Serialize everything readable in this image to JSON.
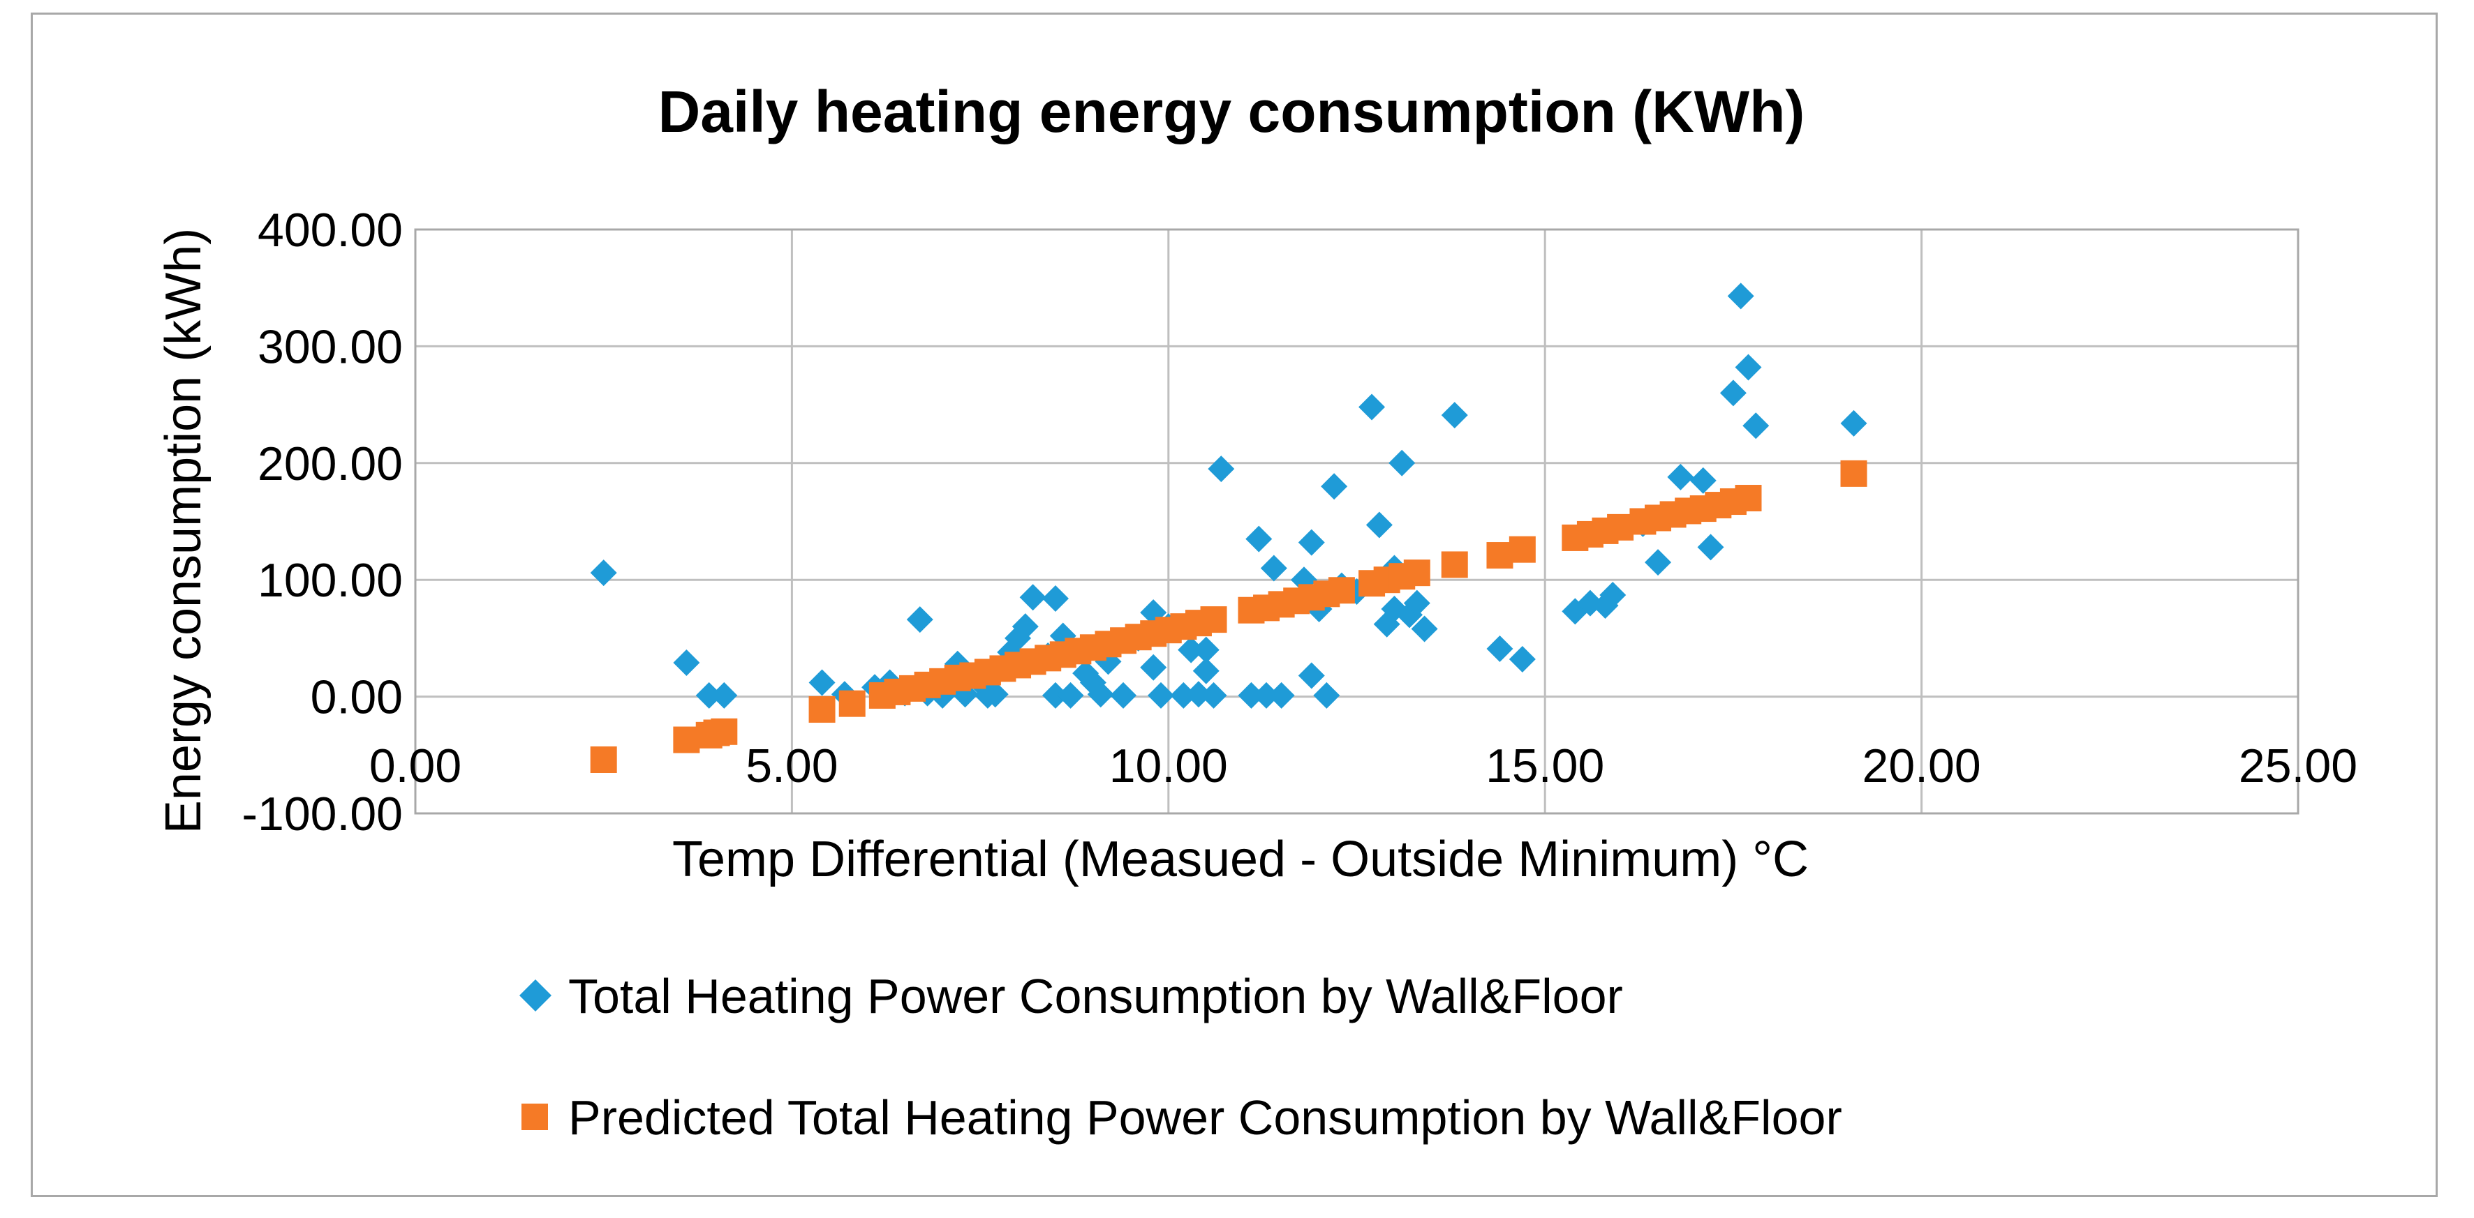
{
  "chart_data": {
    "type": "scatter",
    "title": "Daily heating energy consumption  (KWh)",
    "xlabel": "Temp Differential (Measued - Outside Minimum) °C",
    "ylabel": "Energy consumption (kWh)",
    "xlim": [
      0,
      25
    ],
    "ylim": [
      -100,
      400
    ],
    "x_ticks": [
      "0.00",
      "5.00",
      "10.00",
      "15.00",
      "20.00",
      "25.00"
    ],
    "y_ticks": [
      "400.00",
      "300.00",
      "200.00",
      "100.00",
      "0.00",
      "-100.00"
    ],
    "grid": true,
    "legend_position": "bottom",
    "colors": {
      "series1": "#1f9bd7",
      "series2": "#f57a26",
      "grid": "#bfbfbf",
      "border": "#a8a8a8"
    },
    "series": [
      {
        "name": "Total Heating Power Consumption by Wall&Floor",
        "marker": "diamond",
        "points": [
          [
            2.5,
            106
          ],
          [
            3.6,
            29
          ],
          [
            3.9,
            1
          ],
          [
            4.1,
            1
          ],
          [
            5.4,
            12
          ],
          [
            5.7,
            2
          ],
          [
            6.1,
            8
          ],
          [
            6.3,
            12
          ],
          [
            6.5,
            3
          ],
          [
            6.7,
            66
          ],
          [
            6.8,
            3
          ],
          [
            7.0,
            1
          ],
          [
            7.2,
            28
          ],
          [
            7.3,
            2
          ],
          [
            7.5,
            12
          ],
          [
            7.6,
            1
          ],
          [
            7.7,
            2
          ],
          [
            7.9,
            38
          ],
          [
            8.0,
            50
          ],
          [
            8.1,
            60
          ],
          [
            8.2,
            85
          ],
          [
            8.4,
            35
          ],
          [
            8.5,
            1
          ],
          [
            8.5,
            84
          ],
          [
            8.6,
            52
          ],
          [
            8.7,
            1
          ],
          [
            8.9,
            20
          ],
          [
            9.0,
            12
          ],
          [
            9.1,
            2
          ],
          [
            9.2,
            30
          ],
          [
            9.4,
            1
          ],
          [
            9.6,
            50
          ],
          [
            9.8,
            25
          ],
          [
            9.8,
            72
          ],
          [
            9.9,
            1
          ],
          [
            10.0,
            60
          ],
          [
            10.2,
            1
          ],
          [
            10.3,
            40
          ],
          [
            10.4,
            2
          ],
          [
            10.5,
            40
          ],
          [
            10.5,
            22
          ],
          [
            10.6,
            1
          ],
          [
            10.7,
            195
          ],
          [
            11.1,
            1
          ],
          [
            11.2,
            135
          ],
          [
            11.3,
            1
          ],
          [
            11.4,
            110
          ],
          [
            11.5,
            1
          ],
          [
            11.8,
            100
          ],
          [
            11.9,
            132
          ],
          [
            11.9,
            18
          ],
          [
            12.0,
            75
          ],
          [
            12.1,
            1
          ],
          [
            12.2,
            180
          ],
          [
            12.3,
            95
          ],
          [
            12.5,
            90
          ],
          [
            12.7,
            248
          ],
          [
            12.8,
            147
          ],
          [
            12.9,
            62
          ],
          [
            13.0,
            110
          ],
          [
            13.0,
            75
          ],
          [
            13.1,
            200
          ],
          [
            13.2,
            70
          ],
          [
            13.3,
            80
          ],
          [
            13.4,
            58
          ],
          [
            13.8,
            241
          ],
          [
            14.4,
            41
          ],
          [
            14.7,
            32
          ],
          [
            15.4,
            73
          ],
          [
            15.6,
            80
          ],
          [
            15.8,
            78
          ],
          [
            15.9,
            87
          ],
          [
            16.3,
            148
          ],
          [
            16.5,
            115
          ],
          [
            16.8,
            188
          ],
          [
            17.1,
            185
          ],
          [
            17.2,
            128
          ],
          [
            17.5,
            260
          ],
          [
            17.6,
            343
          ],
          [
            17.7,
            282
          ],
          [
            17.8,
            232
          ],
          [
            19.1,
            234
          ]
        ]
      },
      {
        "name": "Predicted Total Heating Power Consumption by Wall&Floor",
        "marker": "square",
        "points": [
          [
            2.5,
            -54
          ],
          [
            3.6,
            -37
          ],
          [
            3.9,
            -33
          ],
          [
            4.0,
            -31
          ],
          [
            4.1,
            -30
          ],
          [
            5.4,
            -11
          ],
          [
            5.8,
            -6
          ],
          [
            6.2,
            1
          ],
          [
            6.4,
            4
          ],
          [
            6.6,
            7
          ],
          [
            6.8,
            10
          ],
          [
            7.0,
            13
          ],
          [
            7.2,
            16
          ],
          [
            7.4,
            18
          ],
          [
            7.6,
            21
          ],
          [
            7.8,
            24
          ],
          [
            8.0,
            27
          ],
          [
            8.2,
            30
          ],
          [
            8.4,
            33
          ],
          [
            8.6,
            36
          ],
          [
            8.8,
            39
          ],
          [
            9.0,
            42
          ],
          [
            9.2,
            45
          ],
          [
            9.4,
            48
          ],
          [
            9.6,
            51
          ],
          [
            9.8,
            54
          ],
          [
            10.0,
            57
          ],
          [
            10.2,
            60
          ],
          [
            10.4,
            63
          ],
          [
            10.6,
            66
          ],
          [
            11.1,
            74
          ],
          [
            11.3,
            76
          ],
          [
            11.5,
            79
          ],
          [
            11.7,
            82
          ],
          [
            11.9,
            85
          ],
          [
            12.1,
            88
          ],
          [
            12.3,
            91
          ],
          [
            12.7,
            97
          ],
          [
            12.9,
            100
          ],
          [
            13.1,
            103
          ],
          [
            13.3,
            106
          ],
          [
            13.8,
            113
          ],
          [
            14.4,
            121
          ],
          [
            14.7,
            126
          ],
          [
            15.4,
            136
          ],
          [
            15.6,
            139
          ],
          [
            15.8,
            142
          ],
          [
            16.0,
            145
          ],
          [
            16.3,
            150
          ],
          [
            16.5,
            153
          ],
          [
            16.7,
            156
          ],
          [
            16.9,
            159
          ],
          [
            17.1,
            161
          ],
          [
            17.3,
            164
          ],
          [
            17.5,
            167
          ],
          [
            17.7,
            170
          ],
          [
            19.1,
            191
          ]
        ]
      }
    ]
  }
}
